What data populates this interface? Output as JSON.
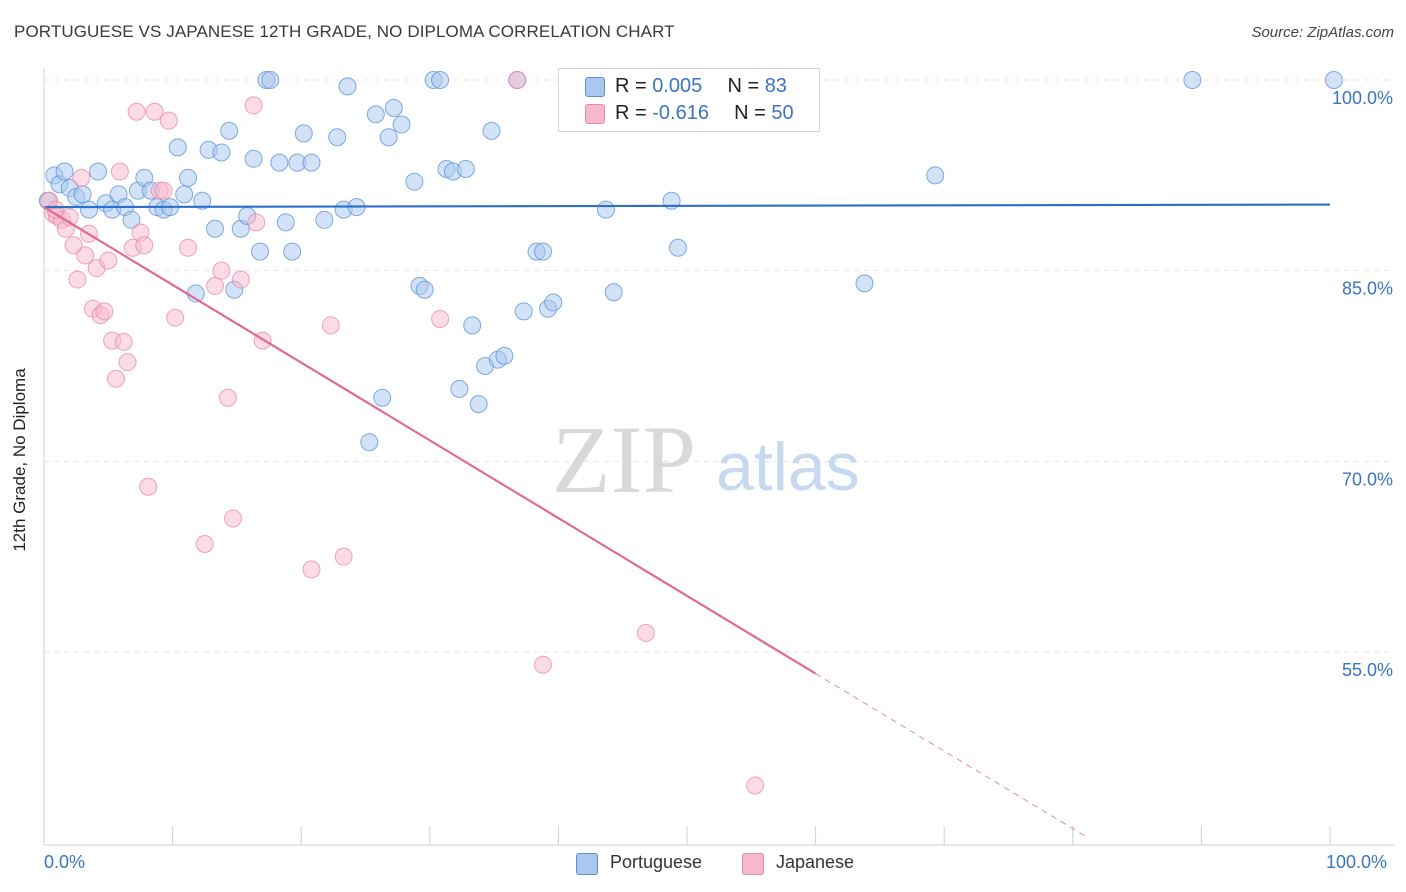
{
  "header": {
    "title": "PORTUGUESE VS JAPANESE 12TH GRADE, NO DIPLOMA CORRELATION CHART",
    "source": "Source: ZipAtlas.com"
  },
  "legend_top": {
    "rows": [
      {
        "r_label": "R = ",
        "r_value": "0.005",
        "n_label": "N = ",
        "n_value": "83"
      },
      {
        "r_label": "R = ",
        "r_value": "-0.616",
        "n_label": "N = ",
        "n_value": "50"
      }
    ]
  },
  "watermark": {
    "part1": "ZIP",
    "part2": "atlas"
  },
  "colors": {
    "portuguese_fill": "#a8c8f0",
    "portuguese_stroke": "#5b8fd6",
    "portuguese_line": "#2a6fc9",
    "japanese_fill": "#f7b8cb",
    "japanese_stroke": "#e888a8",
    "japanese_line": "#e06a95",
    "axis_text": "#3a74c4"
  },
  "chart_data": {
    "type": "scatter",
    "title": "PORTUGUESE VS JAPANESE 12TH GRADE, NO DIPLOMA CORRELATION CHART",
    "xlabel": "",
    "ylabel": "12th Grade, No Diploma",
    "xlim": [
      0,
      100
    ],
    "ylim": [
      40,
      101.5
    ],
    "x_tick_labels": [
      "0.0%",
      "100.0%"
    ],
    "y_ticks": [
      55,
      70,
      85,
      100
    ],
    "y_tick_labels": [
      "55.0%",
      "70.0%",
      "85.0%",
      "100.0%"
    ],
    "grid": true,
    "legend": [
      "Portuguese",
      "Japanese"
    ],
    "series": [
      {
        "name": "Portuguese",
        "r": 0.005,
        "n": 83,
        "trend": {
          "x": [
            0,
            100
          ],
          "y": [
            90.0,
            90.2
          ]
        },
        "points": [
          [
            0.3,
            90.5
          ],
          [
            0.8,
            92.5
          ],
          [
            1.2,
            91.8
          ],
          [
            1.6,
            92.8
          ],
          [
            2.0,
            91.5
          ],
          [
            2.5,
            90.8
          ],
          [
            3.0,
            91.0
          ],
          [
            3.5,
            89.8
          ],
          [
            4.2,
            92.8
          ],
          [
            4.8,
            90.3
          ],
          [
            5.3,
            89.8
          ],
          [
            5.8,
            91.0
          ],
          [
            6.3,
            90.0
          ],
          [
            6.8,
            89.0
          ],
          [
            7.3,
            91.3
          ],
          [
            7.8,
            92.3
          ],
          [
            8.3,
            91.3
          ],
          [
            8.8,
            90.0
          ],
          [
            9.3,
            89.8
          ],
          [
            9.8,
            90.0
          ],
          [
            10.4,
            94.7
          ],
          [
            10.9,
            91.0
          ],
          [
            11.2,
            92.3
          ],
          [
            11.8,
            83.2
          ],
          [
            12.3,
            90.5
          ],
          [
            12.8,
            94.5
          ],
          [
            13.3,
            88.3
          ],
          [
            13.8,
            94.3
          ],
          [
            14.4,
            96.0
          ],
          [
            14.8,
            83.5
          ],
          [
            15.3,
            88.3
          ],
          [
            15.8,
            89.3
          ],
          [
            16.3,
            93.8
          ],
          [
            16.8,
            86.5
          ],
          [
            17.3,
            100.0
          ],
          [
            17.6,
            100.0
          ],
          [
            18.3,
            93.5
          ],
          [
            18.8,
            88.8
          ],
          [
            19.3,
            86.5
          ],
          [
            19.7,
            93.5
          ],
          [
            20.2,
            95.8
          ],
          [
            20.8,
            93.5
          ],
          [
            21.8,
            89.0
          ],
          [
            22.8,
            95.5
          ],
          [
            23.3,
            89.8
          ],
          [
            23.6,
            99.5
          ],
          [
            24.3,
            90.0
          ],
          [
            25.3,
            71.5
          ],
          [
            25.8,
            97.3
          ],
          [
            26.3,
            75.0
          ],
          [
            26.8,
            95.5
          ],
          [
            27.2,
            97.8
          ],
          [
            27.8,
            96.5
          ],
          [
            28.8,
            92.0
          ],
          [
            29.2,
            83.8
          ],
          [
            29.6,
            83.5
          ],
          [
            30.3,
            100.0
          ],
          [
            30.8,
            100.0
          ],
          [
            31.3,
            93.0
          ],
          [
            31.8,
            92.8
          ],
          [
            32.3,
            75.7
          ],
          [
            32.8,
            93.0
          ],
          [
            33.3,
            80.7
          ],
          [
            33.8,
            74.5
          ],
          [
            34.3,
            77.5
          ],
          [
            34.8,
            96.0
          ],
          [
            35.3,
            78.0
          ],
          [
            35.8,
            78.3
          ],
          [
            36.8,
            100.0
          ],
          [
            37.3,
            81.8
          ],
          [
            38.3,
            86.5
          ],
          [
            38.8,
            86.5
          ],
          [
            39.2,
            82.0
          ],
          [
            39.6,
            82.5
          ],
          [
            43.7,
            89.8
          ],
          [
            44.3,
            83.3
          ],
          [
            48.3,
            100.0
          ],
          [
            48.8,
            90.5
          ],
          [
            49.3,
            86.8
          ],
          [
            63.8,
            84.0
          ],
          [
            69.3,
            92.5
          ],
          [
            89.3,
            100.0
          ],
          [
            100.3,
            100.0
          ]
        ]
      },
      {
        "name": "Japanese",
        "r": -0.616,
        "n": 50,
        "trend": {
          "x": [
            0,
            60
          ],
          "y": [
            90.0,
            53.3
          ]
        },
        "trend_extension": {
          "x": [
            60,
            81
          ],
          "y": [
            53.3,
            40.5
          ]
        },
        "points": [
          [
            0.4,
            90.5
          ],
          [
            0.7,
            89.5
          ],
          [
            1.0,
            89.3
          ],
          [
            1.4,
            89.0
          ],
          [
            1.7,
            88.3
          ],
          [
            2.0,
            89.2
          ],
          [
            2.3,
            87.0
          ],
          [
            2.6,
            84.3
          ],
          [
            2.9,
            92.3
          ],
          [
            3.2,
            86.2
          ],
          [
            3.5,
            87.9
          ],
          [
            3.8,
            82.0
          ],
          [
            4.1,
            85.2
          ],
          [
            4.4,
            81.5
          ],
          [
            4.7,
            81.8
          ],
          [
            5.0,
            85.8
          ],
          [
            5.3,
            79.5
          ],
          [
            5.6,
            76.5
          ],
          [
            5.9,
            92.8
          ],
          [
            6.2,
            79.4
          ],
          [
            6.5,
            77.8
          ],
          [
            6.9,
            86.8
          ],
          [
            7.2,
            97.5
          ],
          [
            7.5,
            88.0
          ],
          [
            7.8,
            87.0
          ],
          [
            8.1,
            68.0
          ],
          [
            8.6,
            97.5
          ],
          [
            9.0,
            91.3
          ],
          [
            9.3,
            91.3
          ],
          [
            9.7,
            96.8
          ],
          [
            10.2,
            81.3
          ],
          [
            11.2,
            86.8
          ],
          [
            12.5,
            63.5
          ],
          [
            13.3,
            83.8
          ],
          [
            13.8,
            85.0
          ],
          [
            14.3,
            75.0
          ],
          [
            14.7,
            65.5
          ],
          [
            15.3,
            84.3
          ],
          [
            16.3,
            98.0
          ],
          [
            16.5,
            88.8
          ],
          [
            17.0,
            79.5
          ],
          [
            20.8,
            61.5
          ],
          [
            22.3,
            80.7
          ],
          [
            23.3,
            62.5
          ],
          [
            30.8,
            81.2
          ],
          [
            36.8,
            100.0
          ],
          [
            38.8,
            54.0
          ],
          [
            46.8,
            56.5
          ],
          [
            55.3,
            44.5
          ],
          [
            0.9,
            89.8
          ]
        ]
      }
    ]
  }
}
